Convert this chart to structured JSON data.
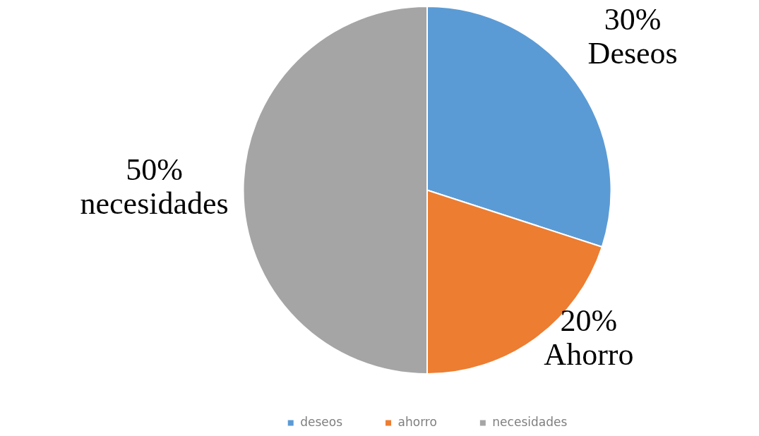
{
  "chart_data": {
    "type": "pie",
    "categories": [
      "deseos",
      "ahorro",
      "necesidades"
    ],
    "values": [
      30,
      20,
      50
    ],
    "colors": [
      "#5b9bd5",
      "#ed7d31",
      "#a5a5a5"
    ],
    "value_labels": [
      "30%\nDeseos",
      "20%\nAhorro",
      "50%\nnecesidades"
    ],
    "legend": "bottom"
  }
}
